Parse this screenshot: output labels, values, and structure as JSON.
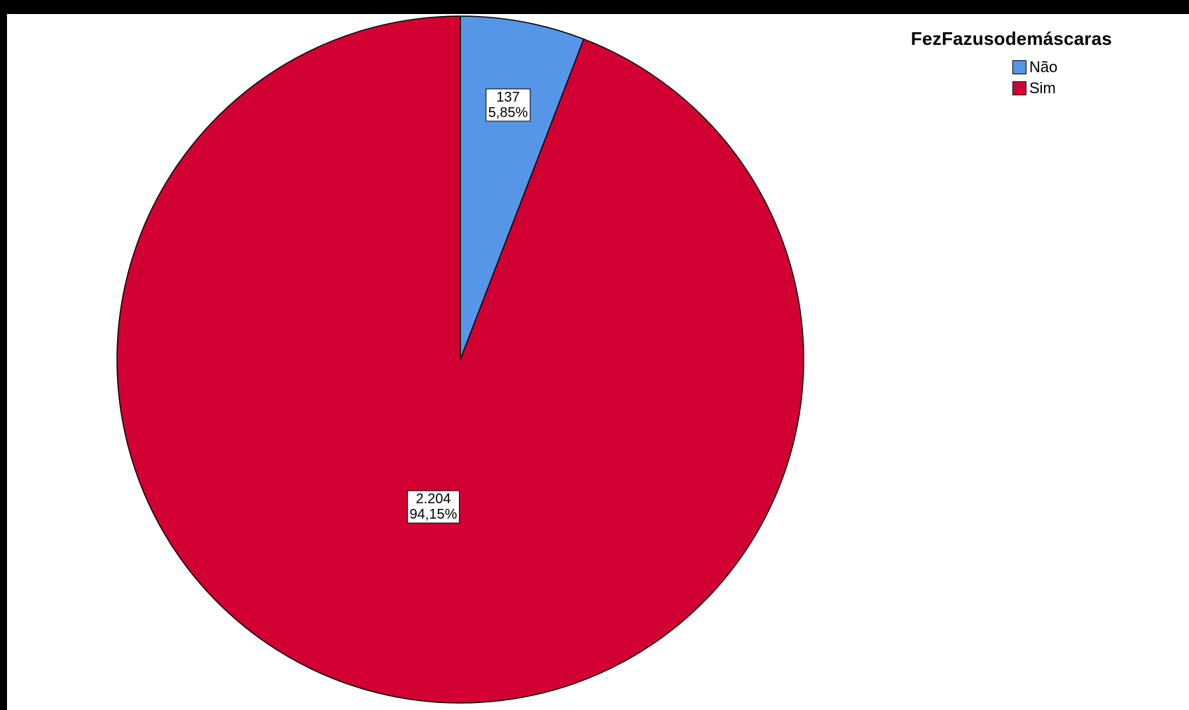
{
  "chart_data": {
    "type": "pie",
    "legend_title": "FezFazusodemáscaras",
    "legend_position": "top-right",
    "start_angle": "12 o'clock",
    "direction": "clockwise",
    "slices": [
      {
        "name": "Não",
        "count": 137,
        "count_label": "137",
        "percent": 5.85,
        "percent_label": "5,85%",
        "color": "#5596E6"
      },
      {
        "name": "Sim",
        "count": 2204,
        "count_label": "2.204",
        "percent": 94.15,
        "percent_label": "94,15%",
        "color": "#D20032"
      }
    ]
  }
}
